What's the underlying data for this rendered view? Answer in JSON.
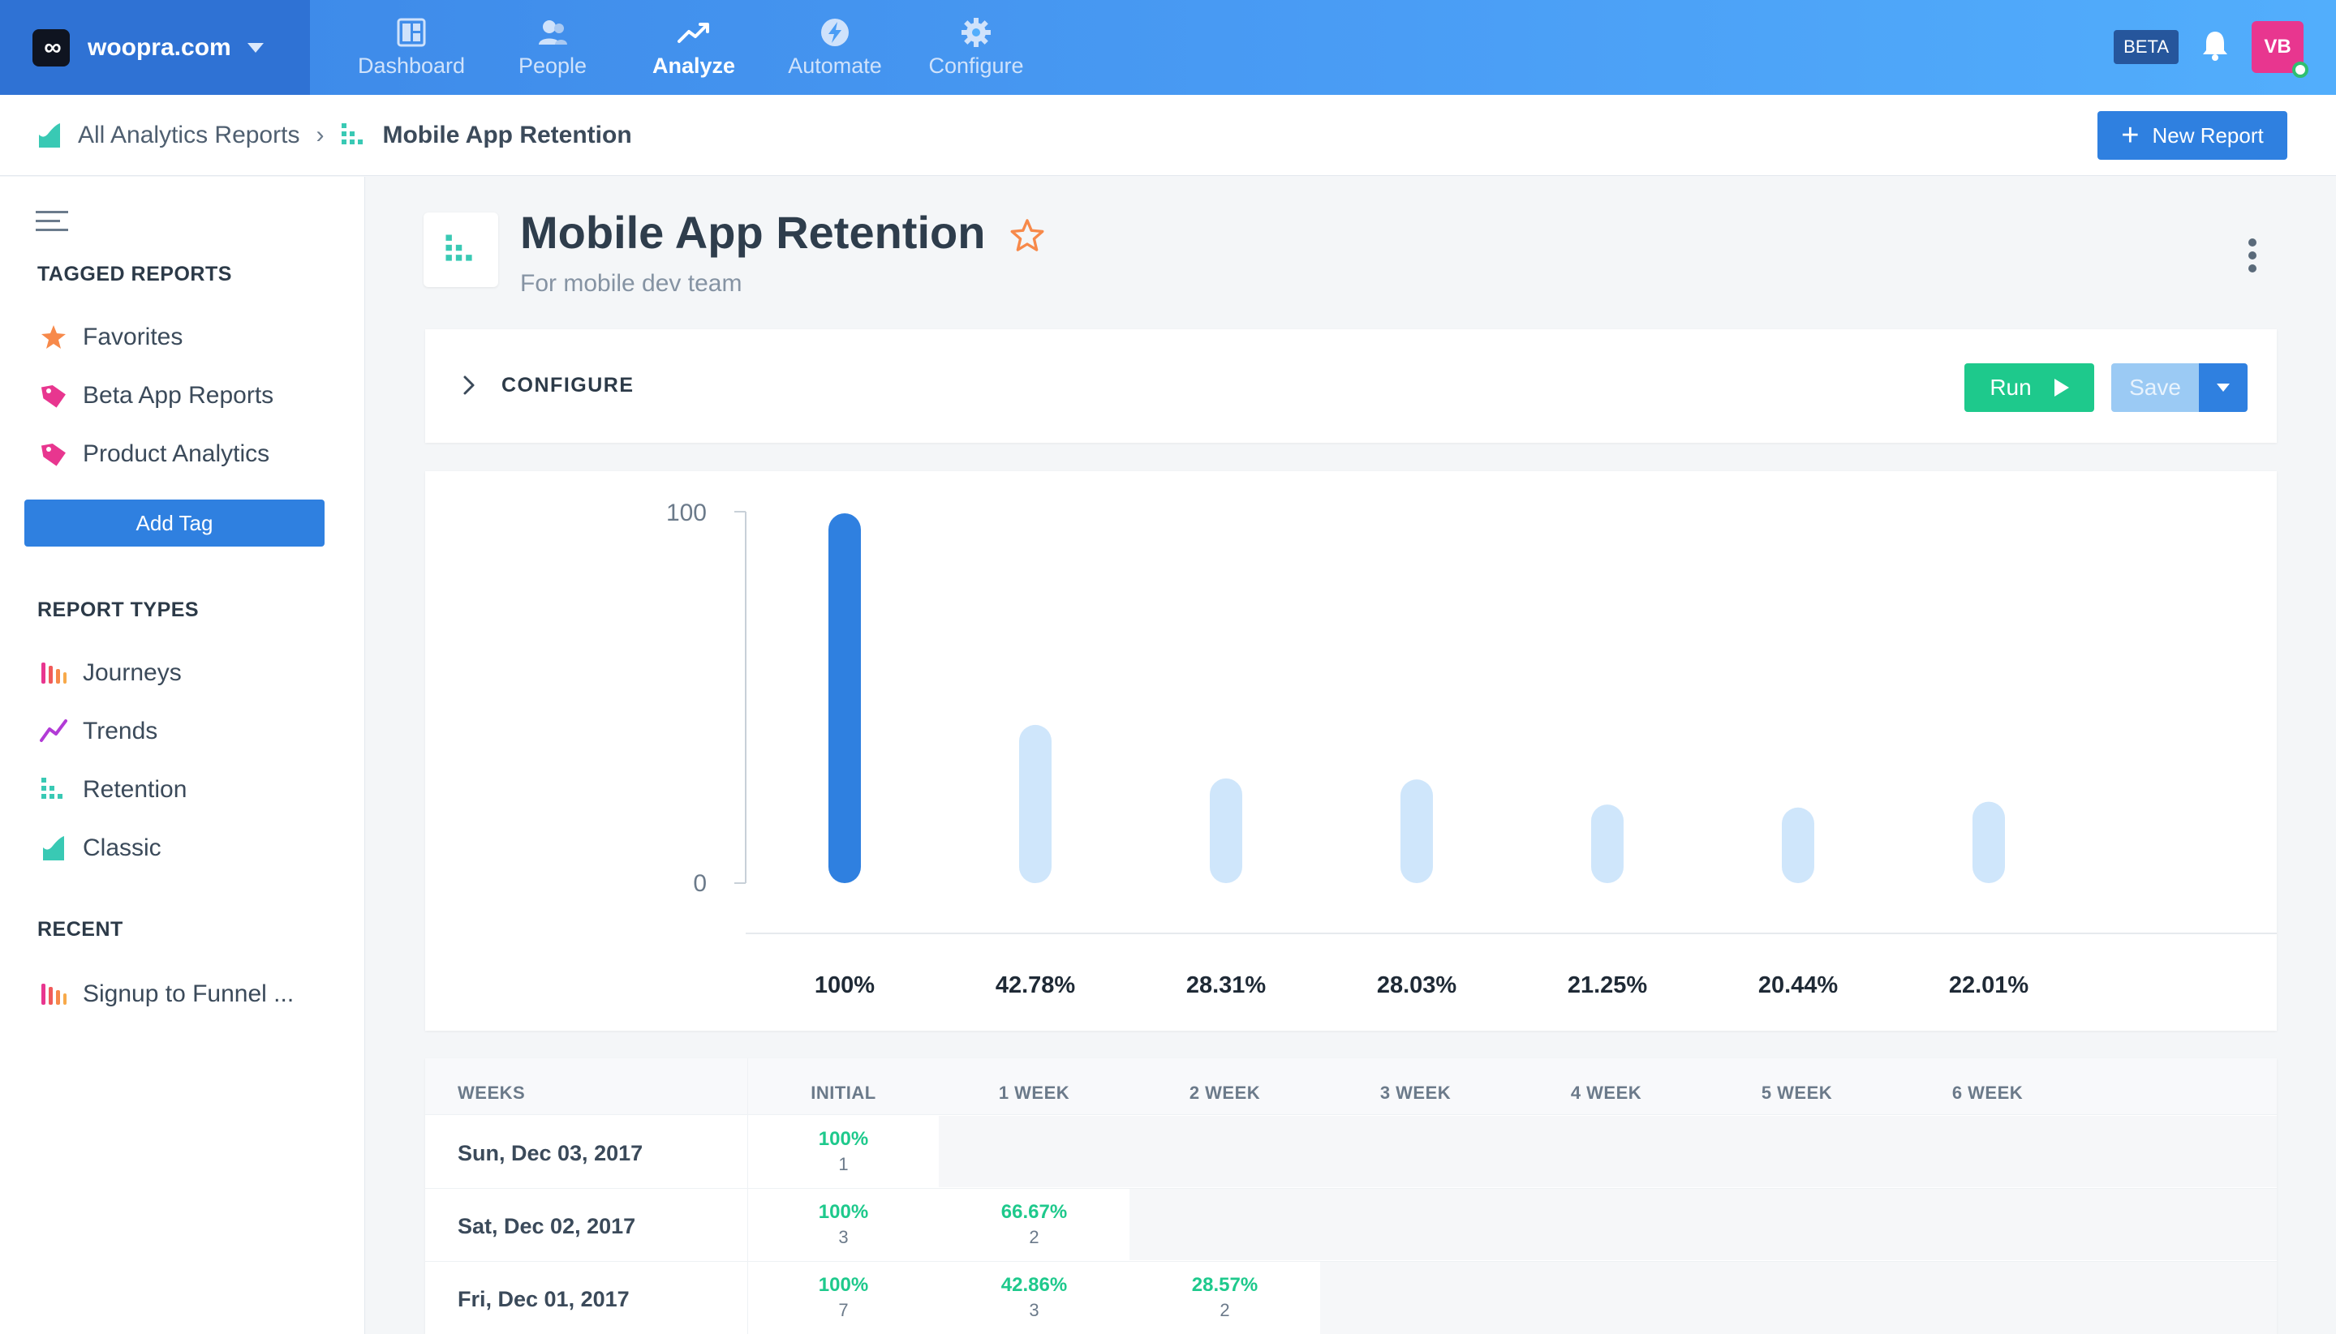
{
  "brand": {
    "name": "woopra.com",
    "logo_glyph": "∞"
  },
  "nav": [
    {
      "label": "Dashboard",
      "icon": "dashboard-icon",
      "active": false
    },
    {
      "label": "People",
      "icon": "people-icon",
      "active": false
    },
    {
      "label": "Analyze",
      "icon": "trend-icon",
      "active": true
    },
    {
      "label": "Automate",
      "icon": "bolt-icon",
      "active": false
    },
    {
      "label": "Configure",
      "icon": "gear-icon",
      "active": false
    }
  ],
  "topright": {
    "beta": "BETA",
    "avatar": "VB"
  },
  "breadcrumb": {
    "root": "All Analytics Reports",
    "sep": "›",
    "current": "Mobile App Retention"
  },
  "new_report": {
    "plus": "+",
    "label": "New Report"
  },
  "sidebar": {
    "tagged_heading": "TAGGED REPORTS",
    "tagged": [
      {
        "label": "Favorites",
        "icon": "star-icon",
        "color": "#f7894a"
      },
      {
        "label": "Beta App Reports",
        "icon": "tag-icon",
        "color": "#e8368f"
      },
      {
        "label": "Product Analytics",
        "icon": "tag-icon",
        "color": "#e8368f"
      }
    ],
    "add_tag": "Add Tag",
    "types_heading": "REPORT TYPES",
    "types": [
      {
        "label": "Journeys",
        "icon": "journeys-icon"
      },
      {
        "label": "Trends",
        "icon": "trends-icon"
      },
      {
        "label": "Retention",
        "icon": "retention-icon"
      },
      {
        "label": "Classic",
        "icon": "classic-icon"
      }
    ],
    "recent_heading": "RECENT",
    "recent": [
      {
        "label": "Signup to Funnel ...",
        "icon": "journeys-icon"
      }
    ]
  },
  "report": {
    "title": "Mobile App Retention",
    "subtitle": "For mobile dev team"
  },
  "config": {
    "label": "CONFIGURE",
    "run": "Run",
    "save": "Save"
  },
  "colors": {
    "accent": "#2f80e0",
    "run": "#1ec98c",
    "bar_primary": "#2f80e0",
    "bar_secondary": "#cfe6fb"
  },
  "chart_data": {
    "type": "bar",
    "categories": [
      "INITIAL",
      "1 WEEK",
      "2 WEEK",
      "3 WEEK",
      "4 WEEK",
      "5 WEEK",
      "6 WEEK"
    ],
    "values": [
      100,
      42.78,
      28.31,
      28.03,
      21.25,
      20.44,
      22.01
    ],
    "value_labels": [
      "100%",
      "42.78%",
      "28.31%",
      "28.03%",
      "21.25%",
      "20.44%",
      "22.01%"
    ],
    "ylim": [
      0,
      100
    ],
    "yticks": [
      "0",
      "100"
    ],
    "title": "",
    "xlabel": "",
    "ylabel": "",
    "grid": false
  },
  "table": {
    "headers": [
      "WEEKS",
      "INITIAL",
      "1 WEEK",
      "2 WEEK",
      "3 WEEK",
      "4 WEEK",
      "5 WEEK",
      "6 WEEK"
    ],
    "rows": [
      {
        "date": "Sun, Dec 03, 2017",
        "cells": [
          {
            "pct": "100%",
            "count": "1"
          }
        ]
      },
      {
        "date": "Sat, Dec 02, 2017",
        "cells": [
          {
            "pct": "100%",
            "count": "3"
          },
          {
            "pct": "66.67%",
            "count": "2"
          }
        ]
      },
      {
        "date": "Fri, Dec 01, 2017",
        "cells": [
          {
            "pct": "100%",
            "count": "7"
          },
          {
            "pct": "42.86%",
            "count": "3"
          },
          {
            "pct": "28.57%",
            "count": "2"
          }
        ]
      }
    ]
  }
}
